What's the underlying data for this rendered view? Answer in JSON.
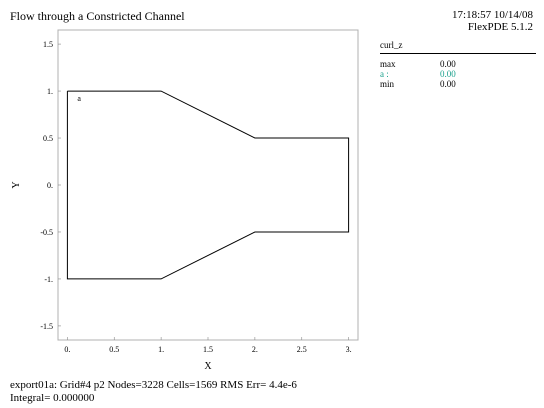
{
  "title": "Flow through a Constricted Channel",
  "timestamp": "17:18:57 10/14/08",
  "version": "FlexPDE 5.1.2",
  "plot": {
    "xlabel": "X",
    "ylabel": "Y",
    "region_label": "a",
    "x_ticks": [
      "0.",
      "0.5",
      "1.",
      "1.5",
      "2.",
      "2.5",
      "3."
    ],
    "y_ticks": [
      "1.5",
      "1.",
      "0.5",
      "0.",
      "-0.5",
      "-1.",
      "-1.5"
    ],
    "outline_color": "#000000"
  },
  "legend": {
    "title": "curl_z",
    "rows": [
      {
        "label": "max",
        "value": "0.00",
        "color": "#000000"
      },
      {
        "label": "a :",
        "value": "0.00",
        "color": "#1aa08c"
      },
      {
        "label": "min",
        "value": "0.00",
        "color": "#000000"
      }
    ]
  },
  "footer": {
    "line1": "export01a:  Grid#4  p2  Nodes=3228 Cells=1569 RMS Err= 4.4e-6",
    "line2": "Integral=  0.000000"
  },
  "chart_data": {
    "type": "line",
    "title": "Flow through a Constricted Channel",
    "xlabel": "X",
    "ylabel": "Y",
    "xlim": [
      -0.1,
      3.1
    ],
    "ylim": [
      -1.65,
      1.65
    ],
    "series": [
      {
        "name": "a",
        "x": [
          0,
          1,
          2,
          3,
          3,
          2,
          1,
          0,
          0
        ],
        "y": [
          1,
          1,
          0.5,
          0.5,
          -0.5,
          -0.5,
          -1,
          -1,
          1
        ]
      }
    ]
  }
}
